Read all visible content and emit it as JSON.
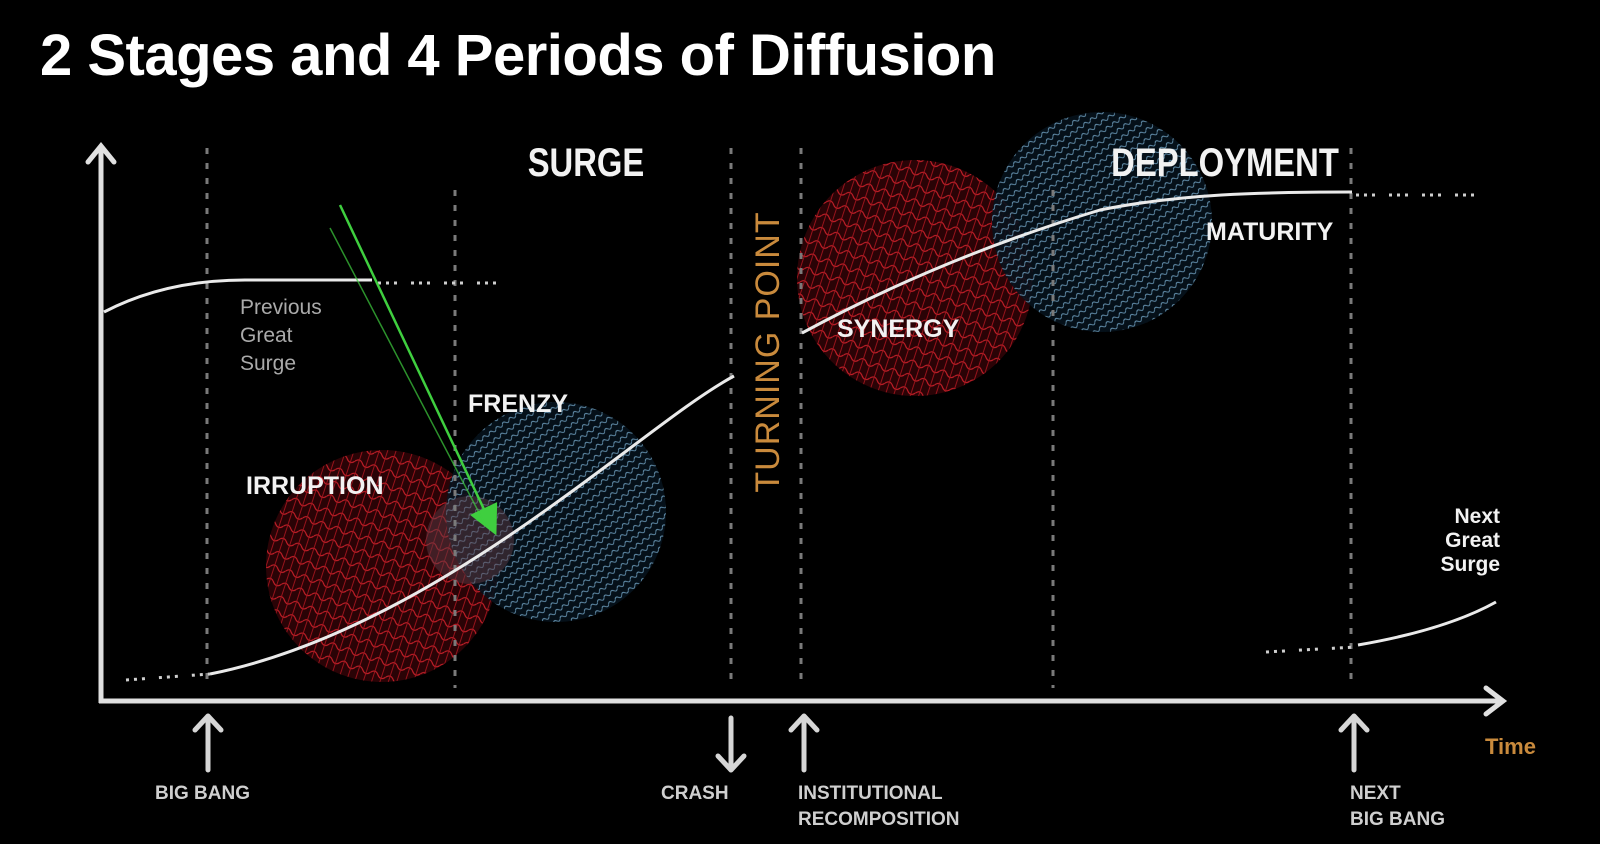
{
  "title": "2 Stages and 4 Periods of Diffusion",
  "stages": {
    "surge": "SURGE",
    "deployment": "DEPLOYMENT"
  },
  "periods": {
    "irruption": "IRRUPTION",
    "frenzy": "FRENZY",
    "synergy": "SYNERGY",
    "maturity": "MATURITY"
  },
  "previous_surge": [
    "Previous",
    "Great",
    "Surge"
  ],
  "next_surge": [
    "Next",
    "Great",
    "Surge"
  ],
  "turning_point": "TURNING POINT",
  "axis": {
    "x_label": "Time"
  },
  "events": {
    "big_bang": "BIG BANG",
    "crash": "CRASH",
    "institutional": [
      "INSTITUTIONAL",
      "RECOMPOSITION"
    ],
    "next_big_bang": [
      "NEXT",
      "BIG BANG"
    ]
  },
  "colors": {
    "background": "#000000",
    "text": "#f2f2f2",
    "accent_orange": "#c98a3c",
    "red_mesh": "#c8202a",
    "blue_mesh": "#6fa3c7",
    "annotation_green": "#3fcf3f"
  }
}
